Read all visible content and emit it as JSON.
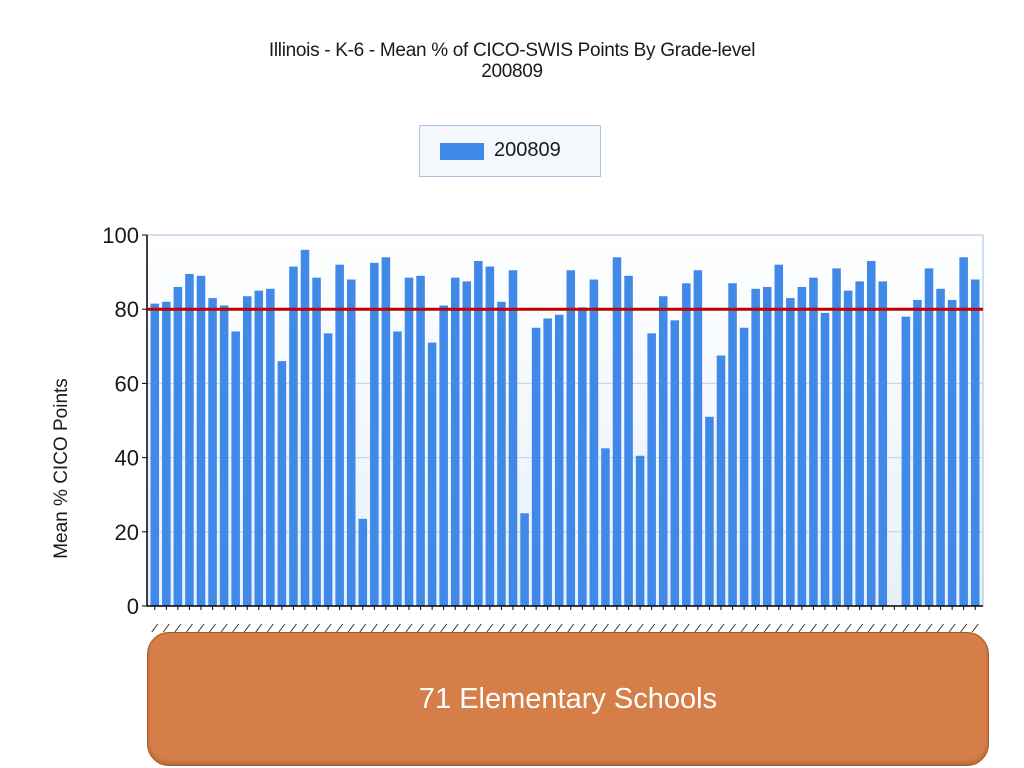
{
  "chart_data": {
    "type": "bar",
    "title": "Illinois - K-6 - Mean % of CICO-SWIS Points By Grade-level",
    "subtitle": "200809",
    "ylabel": "Mean % CICO Points",
    "xlabel": "",
    "ylim": [
      0,
      100
    ],
    "yticks": [
      0,
      20,
      40,
      60,
      80,
      100
    ],
    "grid": true,
    "legend_position": "top-center",
    "series": [
      {
        "name": "200809",
        "color": "#4189e8",
        "values": [
          81.5,
          82,
          86,
          89.5,
          89,
          83,
          81,
          74,
          83.5,
          85,
          85.5,
          66,
          91.5,
          96,
          88.5,
          73.5,
          92,
          88,
          23.5,
          92.5,
          94,
          74,
          88.5,
          89,
          71,
          81,
          88.5,
          87.5,
          93,
          91.5,
          82,
          90.5,
          25,
          75,
          77.5,
          78.5,
          90.5,
          80.5,
          88,
          42.5,
          94,
          89,
          40.5,
          73.5,
          83.5,
          77,
          87,
          90.5,
          51,
          67.5,
          87,
          75,
          85.5,
          86,
          92,
          83,
          86,
          88.5,
          79,
          91,
          85,
          87.5,
          93,
          87.5,
          null,
          78,
          82.5,
          91,
          85.5,
          82.5,
          94,
          88
        ]
      }
    ],
    "reference_line": {
      "value": 80,
      "color": "#c00000"
    }
  },
  "callout": {
    "text": "71 Elementary Schools"
  }
}
